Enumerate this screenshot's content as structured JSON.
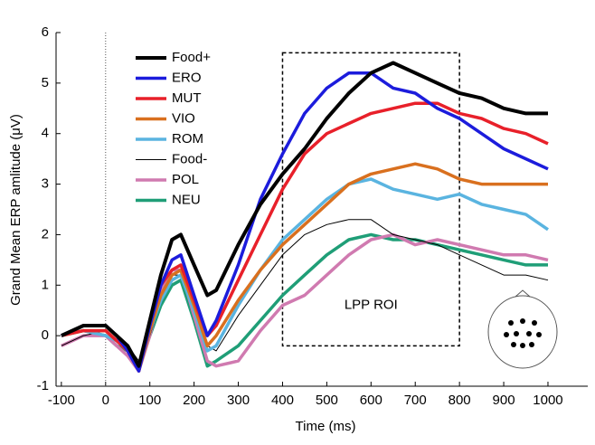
{
  "chart_data": {
    "type": "line",
    "x_label": "Time (ms)",
    "y_label": "Grand Mean ERP amlitude (μV)",
    "xlim": [
      -112,
      1090
    ],
    "ylim": [
      -1,
      6
    ],
    "xticks": [
      -100,
      0,
      100,
      200,
      300,
      400,
      500,
      600,
      700,
      800,
      900,
      1000
    ],
    "yticks": [
      -1,
      0,
      1,
      2,
      3,
      4,
      5,
      6
    ],
    "legend": "upper-left",
    "annotation": "LPP ROI",
    "roi": {
      "x": [
        400,
        800
      ],
      "y": [
        -0.2,
        5.6
      ]
    },
    "x": [
      -100,
      -50,
      0,
      25,
      50,
      75,
      100,
      125,
      150,
      170,
      200,
      230,
      250,
      300,
      350,
      400,
      450,
      500,
      550,
      600,
      650,
      700,
      750,
      800,
      850,
      900,
      950,
      1000
    ],
    "series": [
      {
        "name": "Food+",
        "color": "#000000",
        "line_width": 4,
        "values": [
          0,
          0.2,
          0.2,
          0,
          -0.2,
          -0.6,
          0.3,
          1.2,
          1.9,
          2.0,
          1.4,
          0.8,
          0.9,
          1.8,
          2.6,
          3.2,
          3.7,
          4.3,
          4.8,
          5.2,
          5.4,
          5.2,
          5.0,
          4.8,
          4.7,
          4.5,
          4.4,
          4.4
        ]
      },
      {
        "name": "ERO",
        "color": "#1c1cdc",
        "line_width": 3.5,
        "values": [
          0,
          0.2,
          0.2,
          0,
          -0.3,
          -0.7,
          0.2,
          1.0,
          1.5,
          1.6,
          0.8,
          0.0,
          0.3,
          1.4,
          2.7,
          3.6,
          4.4,
          4.9,
          5.2,
          5.2,
          4.9,
          4.8,
          4.5,
          4.3,
          4.0,
          3.7,
          3.5,
          3.3
        ]
      },
      {
        "name": "MUT",
        "color": "#e8202a",
        "line_width": 3.5,
        "values": [
          0,
          0.1,
          0.1,
          -0.1,
          -0.3,
          -0.7,
          0.2,
          1.0,
          1.3,
          1.4,
          0.7,
          0.0,
          0.2,
          1.1,
          2.0,
          2.9,
          3.6,
          4.0,
          4.2,
          4.4,
          4.5,
          4.6,
          4.6,
          4.4,
          4.3,
          4.1,
          4.0,
          3.8
        ]
      },
      {
        "name": "VIO",
        "color": "#d9701f",
        "line_width": 3.5,
        "values": [
          0,
          0.1,
          0.1,
          -0.1,
          -0.2,
          -0.7,
          0.1,
          0.8,
          1.2,
          1.3,
          0.6,
          -0.2,
          0.0,
          0.7,
          1.3,
          1.8,
          2.2,
          2.6,
          3.0,
          3.2,
          3.3,
          3.4,
          3.3,
          3.1,
          3.0,
          3.0,
          3.0,
          3.0
        ]
      },
      {
        "name": "ROM",
        "color": "#5ab4e0",
        "line_width": 3.5,
        "values": [
          0,
          0.1,
          0.0,
          -0.1,
          -0.3,
          -0.7,
          0.1,
          0.7,
          1.1,
          1.2,
          0.5,
          -0.3,
          -0.2,
          0.6,
          1.3,
          1.9,
          2.3,
          2.7,
          3.0,
          3.1,
          2.9,
          2.8,
          2.7,
          2.8,
          2.6,
          2.5,
          2.4,
          2.1
        ]
      },
      {
        "name": "Food-",
        "color": "#000000",
        "line_width": 1,
        "values": [
          -0.2,
          0,
          0.1,
          -0.1,
          -0.2,
          -0.5,
          0,
          0.7,
          1.2,
          1.2,
          0.5,
          -0.2,
          -0.3,
          0.4,
          1.0,
          1.6,
          2.0,
          2.2,
          2.3,
          2.3,
          2.0,
          1.9,
          1.8,
          1.6,
          1.4,
          1.2,
          1.2,
          1.1
        ]
      },
      {
        "name": "POL",
        "color": "#d07ab0",
        "line_width": 3.5,
        "values": [
          -0.2,
          0,
          0,
          -0.2,
          -0.4,
          -0.7,
          0,
          0.9,
          1.3,
          1.3,
          0.4,
          -0.5,
          -0.6,
          -0.5,
          0.1,
          0.6,
          0.8,
          1.2,
          1.6,
          1.9,
          2.0,
          1.8,
          1.9,
          1.8,
          1.7,
          1.6,
          1.6,
          1.5
        ]
      },
      {
        "name": "NEU",
        "color": "#1f9e77",
        "line_width": 3.5,
        "values": [
          0,
          0.1,
          0,
          -0.2,
          -0.3,
          -0.6,
          0,
          0.6,
          1.0,
          1.1,
          0.3,
          -0.6,
          -0.5,
          -0.2,
          0.3,
          0.8,
          1.2,
          1.6,
          1.9,
          2.0,
          1.9,
          1.9,
          1.8,
          1.7,
          1.6,
          1.5,
          1.4,
          1.4
        ]
      }
    ]
  }
}
